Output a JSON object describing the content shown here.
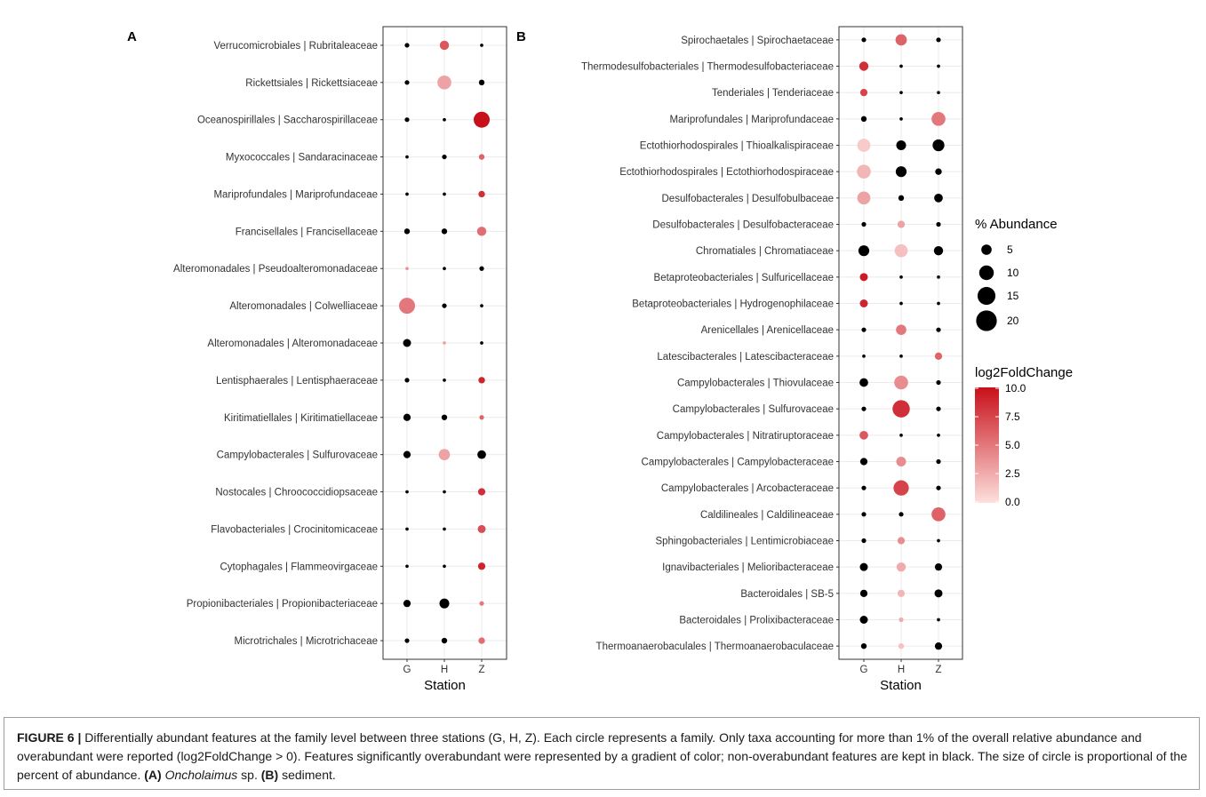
{
  "chart_data": [
    {
      "panel": "A",
      "type": "scatter",
      "xlabel": "Station",
      "x": [
        "G",
        "H",
        "Z"
      ],
      "ylabels": [
        "Verrucomicrobiales | Rubritaleaceae",
        "Rickettsiales | Rickettsiaceae",
        "Oceanospirillales | Saccharospirillaceae",
        "Myxococcales | Sandaracinaceae",
        "Mariprofundales | Mariprofundaceae",
        "Francisellales | Francisellaceae",
        "Alteromonadales | Pseudoalteromonadaceae",
        "Alteromonadales | Colwelliaceae",
        "Alteromonadales | Alteromonadaceae",
        "Lentisphaerales | Lentisphaeraceae",
        "Kiritimatiellales | Kiritimatiellaceae",
        "Campylobacterales | Sulfurovaceae",
        "Nostocales | Chroococcidiopsaceae",
        "Flavobacteriales | Crocinitomicaceae",
        "Cytophagales | Flammeovirgaceae",
        "Propionibacteriales | Propionibacteriaceae",
        "Microtrichales | Microtrichaceae"
      ],
      "abundance": [
        [
          1,
          4,
          0.5
        ],
        [
          1,
          9,
          1.5
        ],
        [
          1,
          0.5,
          12
        ],
        [
          0.5,
          1,
          1.5
        ],
        [
          0.5,
          0.5,
          2
        ],
        [
          1.5,
          1.5,
          4
        ],
        [
          0.5,
          0.5,
          1
        ],
        [
          12,
          1,
          0.5
        ],
        [
          3,
          0.5,
          0.5
        ],
        [
          1,
          0.5,
          2
        ],
        [
          2.5,
          1.5,
          1
        ],
        [
          2.5,
          6,
          3.5
        ],
        [
          0.5,
          0.5,
          2.5
        ],
        [
          0.5,
          0.5,
          3
        ],
        [
          0.5,
          0.5,
          2.5
        ],
        [
          2.5,
          4.5,
          1
        ],
        [
          1,
          1.5,
          2
        ]
      ],
      "log2FoldChange": [
        [
          null,
          6.5,
          null
        ],
        [
          null,
          3,
          null
        ],
        [
          null,
          null,
          10
        ],
        [
          null,
          null,
          6
        ],
        [
          null,
          null,
          8.5
        ],
        [
          null,
          null,
          5.5
        ],
        [
          3.5,
          null,
          null
        ],
        [
          5,
          null,
          null
        ],
        [
          null,
          3,
          null
        ],
        [
          null,
          null,
          9
        ],
        [
          null,
          null,
          6
        ],
        [
          null,
          3,
          null
        ],
        [
          null,
          null,
          8.5
        ],
        [
          null,
          null,
          7
        ],
        [
          null,
          null,
          9
        ],
        [
          null,
          null,
          5
        ],
        [
          null,
          null,
          5.5
        ]
      ]
    },
    {
      "panel": "B",
      "type": "scatter",
      "xlabel": "Station",
      "x": [
        "G",
        "H",
        "Z"
      ],
      "ylabels": [
        "Spirochaetales | Spirochaetaceae",
        "Thermodesulfobacteriales | Thermodesulfobacteriaceae",
        "Tenderiales | Tenderiaceae",
        "Mariprofundales | Mariprofundaceae",
        "Ectothiorhodospirales | Thioalkalispiraceae",
        "Ectothiorhodospirales | Ectothiorhodospiraceae",
        "Desulfobacterales | Desulfobulbaceae",
        "Desulfobacterales | Desulfobacteraceae",
        "Chromatiales | Chromatiaceae",
        "Betaproteobacteriales | Sulfuricellaceae",
        "Betaproteobacteriales | Hydrogenophilaceae",
        "Arenicellales | Arenicellaceae",
        "Latescibacterales | Latescibacteraceae",
        "Campylobacterales | Thiovulaceae",
        "Campylobacterales | Sulfurovaceae",
        "Campylobacterales | Nitratiruptoraceae",
        "Campylobacterales | Campylobacteraceae",
        "Campylobacterales | Arcobacteraceae",
        "Caldilineales | Caldilineaceae",
        "Sphingobacteriales | Lentimicrobiaceae",
        "Ignavibacteriales | Melioribacteraceae",
        "Bacteroidales | SB-5",
        "Bacteroidales | Prolixibacteraceae",
        "Thermoanaerobaculales | Thermoanaerobaculaceae"
      ],
      "abundance": [
        [
          1,
          6,
          1
        ],
        [
          4,
          0.5,
          0.5
        ],
        [
          2.5,
          0.5,
          0.5
        ],
        [
          1.5,
          0.5,
          9
        ],
        [
          8,
          4.5,
          6.5
        ],
        [
          9,
          5.5,
          2
        ],
        [
          8,
          1.5,
          3.5
        ],
        [
          1,
          2.5,
          1
        ],
        [
          5.5,
          8,
          4
        ],
        [
          3,
          0.5,
          0.5
        ],
        [
          3,
          0.5,
          0.5
        ],
        [
          1,
          5,
          1
        ],
        [
          0.5,
          0.5,
          2.5
        ],
        [
          3.5,
          9,
          1
        ],
        [
          1,
          14,
          1
        ],
        [
          3.5,
          0.5,
          0.5
        ],
        [
          2.5,
          4.5,
          1
        ],
        [
          1,
          11,
          1
        ],
        [
          1,
          1,
          9
        ],
        [
          1,
          2.5,
          0.5
        ],
        [
          3,
          4,
          2.5
        ],
        [
          2.5,
          2.5,
          3
        ],
        [
          3,
          1,
          0.5
        ],
        [
          1.5,
          1.5,
          2.5
        ]
      ],
      "log2FoldChange": [
        [
          null,
          6,
          null
        ],
        [
          8.5,
          null,
          null
        ],
        [
          7.5,
          null,
          null
        ],
        [
          null,
          null,
          5
        ],
        [
          1,
          null,
          null
        ],
        [
          2,
          null,
          null
        ],
        [
          3,
          null,
          null
        ],
        [
          null,
          3,
          null
        ],
        [
          null,
          1.5,
          null
        ],
        [
          9.5,
          null,
          null
        ],
        [
          9,
          null,
          null
        ],
        [
          null,
          5,
          null
        ],
        [
          null,
          null,
          6
        ],
        [
          null,
          4,
          null
        ],
        [
          null,
          8.5,
          null
        ],
        [
          6.5,
          null,
          null
        ],
        [
          null,
          4,
          null
        ],
        [
          null,
          7.5,
          null
        ],
        [
          null,
          null,
          6
        ],
        [
          null,
          4,
          null
        ],
        [
          null,
          2.5,
          null
        ],
        [
          null,
          2,
          null
        ],
        [
          null,
          2.5,
          null
        ],
        [
          null,
          1.5,
          null
        ]
      ]
    }
  ],
  "panels": {
    "a_label": "A",
    "b_label": "B",
    "a_xlabel": "Station",
    "b_xlabel": "Station"
  },
  "legend": {
    "size_title": "% Abundance",
    "size_values": [
      5,
      10,
      15,
      20
    ],
    "color_title": "log2FoldChange",
    "color_ticks": [
      "10.0",
      "7.5",
      "5.0",
      "2.5",
      "0.0"
    ],
    "color_low": "#fde0dd",
    "color_high": "#c8101a",
    "nonsignificant_color": "#000000"
  },
  "caption": {
    "prefix": "FIGURE 6 |",
    "body": "Differentially abundant features at the family level between three stations (G, H, Z). Each circle represents a family. Only taxa accounting for more than 1% of the overall relative abundance and overabundant were reported (log2FoldChange > 0). Features significantly overabundant were represented by a gradient of color; non-overabundant features are kept in black. The size of circle is proportional of the percent of abundance.",
    "a_ref": "(A)",
    "a_text_italic": "Oncholaimus",
    "a_text": "sp.",
    "b_ref": "(B)",
    "b_text": "sediment."
  }
}
